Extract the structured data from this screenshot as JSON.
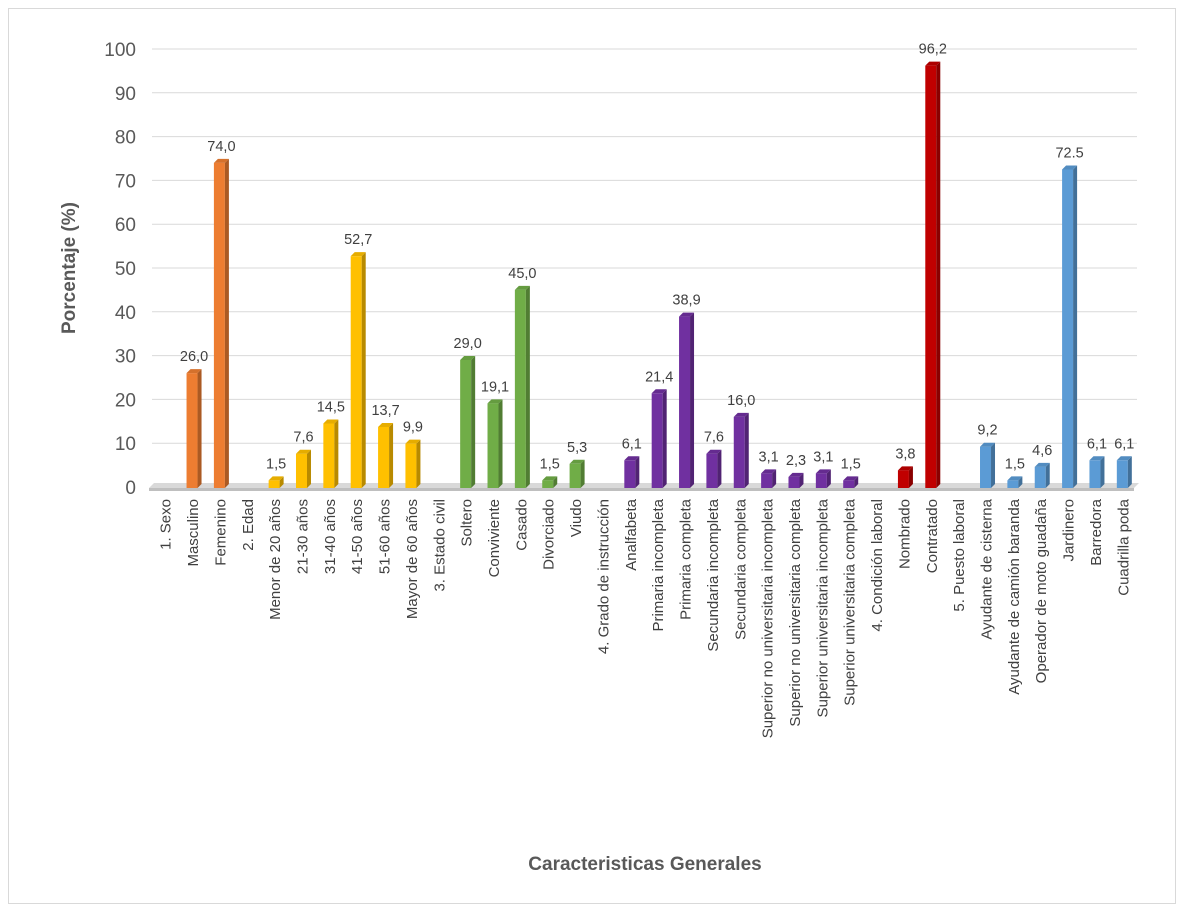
{
  "chart_data": {
    "type": "bar",
    "title": "",
    "xlabel": "Caracteristicas Generales",
    "ylabel": "Porcentaje (%)",
    "ylim": [
      0,
      100
    ],
    "yticks": [
      0,
      10,
      20,
      30,
      40,
      50,
      60,
      70,
      80,
      90,
      100
    ],
    "grid": true,
    "legend": "none",
    "colors": {
      "sexo": "#ed7d31",
      "edad": "#ffc000",
      "estado_civil": "#70ad47",
      "grado_instruccion": "#7030a0",
      "condicion_laboral": "#c00000",
      "puesto_laboral": "#5b9bd5"
    },
    "categories": [
      "1. Sexo",
      "Masculino",
      "Femenino",
      "2. Edad",
      "Menor de 20 años",
      "21-30 años",
      "31-40 años",
      "41-50 años",
      "51-60 años",
      "Mayor de 60 años",
      "3. Estado civil",
      "Soltero",
      "Conviviente",
      "Casado",
      "Divorciado",
      "Viudo",
      "4. Grado de instrucción",
      "Analfabeta",
      "Primaria incompleta",
      "Primaria completa",
      "Secundaria incompleta",
      "Secundaria completa",
      "Superior no universitaria incompleta",
      "Superior no universitaria completa",
      "Superior universitaria incompleta",
      "Superior universitaria completa",
      "4. Condición laboral",
      "Nombrado",
      "Contratado",
      "5. Puesto laboral",
      "Ayudante de cisterna",
      "Ayudante de camión baranda",
      "Operador de moto guadaña",
      "Jardinero",
      "Barredora",
      "Cuadrilla poda"
    ],
    "values": [
      null,
      26.0,
      74.0,
      null,
      1.5,
      7.6,
      14.5,
      52.7,
      13.7,
      9.9,
      null,
      29.0,
      19.1,
      45.0,
      1.5,
      5.3,
      null,
      6.1,
      21.4,
      38.9,
      7.6,
      16.0,
      3.1,
      2.3,
      3.1,
      1.5,
      null,
      3.8,
      96.2,
      null,
      9.2,
      1.5,
      4.6,
      72.5,
      6.1,
      6.1
    ],
    "labels": [
      "",
      "26,0",
      "74,0",
      "",
      "1,5",
      "7,6",
      "14,5",
      "52,7",
      "13,7",
      "9,9",
      "",
      "29,0",
      "19,1",
      "45,0",
      "1,5",
      "5,3",
      "",
      "6,1",
      "21,4",
      "38,9",
      "7,6",
      "16,0",
      "3,1",
      "2,3",
      "3,1",
      "1,5",
      "",
      "3,8",
      "96,2",
      "",
      "9,2",
      "1,5",
      "4,6",
      "72.5",
      "6,1",
      "6,1"
    ],
    "groups": [
      "sexo",
      "sexo",
      "sexo",
      "edad",
      "edad",
      "edad",
      "edad",
      "edad",
      "edad",
      "edad",
      "estado_civil",
      "estado_civil",
      "estado_civil",
      "estado_civil",
      "estado_civil",
      "estado_civil",
      "grado_instruccion",
      "grado_instruccion",
      "grado_instruccion",
      "grado_instruccion",
      "grado_instruccion",
      "grado_instruccion",
      "grado_instruccion",
      "grado_instruccion",
      "grado_instruccion",
      "grado_instruccion",
      "condicion_laboral",
      "condicion_laboral",
      "condicion_laboral",
      "puesto_laboral",
      "puesto_laboral",
      "puesto_laboral",
      "puesto_laboral",
      "puesto_laboral",
      "puesto_laboral",
      "puesto_laboral"
    ]
  }
}
